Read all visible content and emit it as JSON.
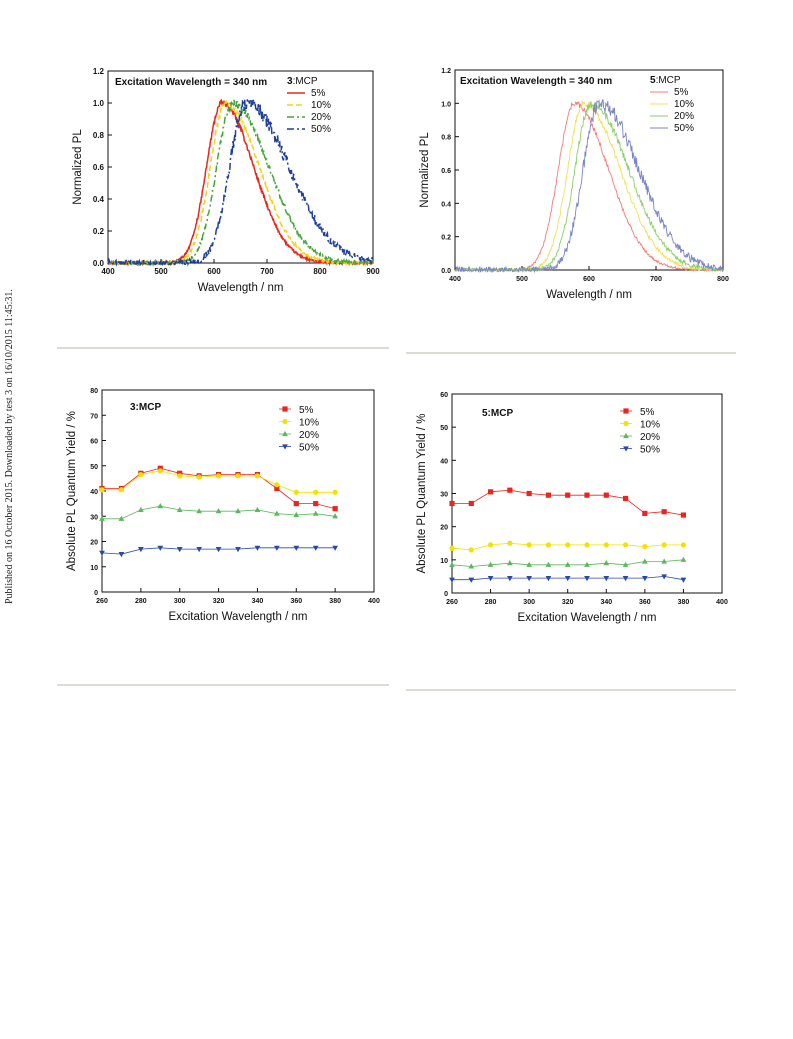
{
  "page": {
    "side_note": "Published on 16 October 2015. Downloaded by test 3 on 16/10/2015 11:45:31."
  },
  "chart_data": [
    {
      "type": "line",
      "annotation": "Excitation Wavelength = 340 nm",
      "legend_title_bold": "3",
      "legend_title": ":MCP",
      "legend_position": "top-right",
      "xlabel": "Wavelength / nm",
      "ylabel": "Normalized PL",
      "xlim": [
        400,
        900
      ],
      "ylim": [
        0.0,
        1.2
      ],
      "xticks": [
        400,
        500,
        600,
        700,
        800,
        900
      ],
      "yticks": [
        0.0,
        0.2,
        0.4,
        0.6,
        0.8,
        1.0,
        1.2
      ],
      "ytick_decimals": 1,
      "grid": false,
      "series": [
        {
          "name": "5%",
          "color": "#e8261f",
          "dash": "solid",
          "peak": 615,
          "width_left": 34,
          "width_right": 70
        },
        {
          "name": "10%",
          "color": "#f2d21b",
          "dash": "dashed",
          "peak": 622,
          "width_left": 34,
          "width_right": 74
        },
        {
          "name": "20%",
          "color": "#46a63c",
          "dash": "dashdot",
          "peak": 635,
          "width_left": 35,
          "width_right": 80
        },
        {
          "name": "50%",
          "color": "#1f3f99",
          "dash": "dashdot",
          "peak": 660,
          "width_left": 36,
          "width_right": 95
        }
      ]
    },
    {
      "type": "line",
      "annotation": "Excitation Wavelength = 340 nm",
      "legend_title_bold": "5",
      "legend_title": ":MCP",
      "legend_position": "top-right",
      "xlabel": "Wavelength / nm",
      "ylabel": "Normalized PL",
      "xlim": [
        400,
        800
      ],
      "ylim": [
        0.0,
        1.2
      ],
      "xticks": [
        400,
        500,
        600,
        700,
        800
      ],
      "yticks": [
        0.0,
        0.2,
        0.4,
        0.6,
        0.8,
        1.0,
        1.2
      ],
      "ytick_decimals": 1,
      "grid": false,
      "series": [
        {
          "name": "5%",
          "color": "#f07b7b",
          "dash": "solid",
          "peak": 578,
          "width_left": 28,
          "width_right": 60
        },
        {
          "name": "10%",
          "color": "#f0e05a",
          "dash": "solid",
          "peak": 592,
          "width_left": 28,
          "width_right": 64
        },
        {
          "name": "20%",
          "color": "#8ccf6a",
          "dash": "solid",
          "peak": 603,
          "width_left": 28,
          "width_right": 66
        },
        {
          "name": "50%",
          "color": "#7a86c8",
          "dash": "solid",
          "peak": 615,
          "width_left": 28,
          "width_right": 70
        }
      ]
    },
    {
      "type": "scatter",
      "title": "3:MCP",
      "legend_position": "top-right",
      "xlabel": "Excitation Wavelength / nm",
      "ylabel": "Absolute PL Quantum Yield / %",
      "xlim": [
        260,
        400
      ],
      "ylim": [
        0,
        80
      ],
      "xticks": [
        260,
        280,
        300,
        320,
        340,
        360,
        380,
        400
      ],
      "yticks": [
        0,
        10,
        20,
        30,
        40,
        50,
        60,
        70,
        80
      ],
      "ytick_decimals": 0,
      "grid": false,
      "x": [
        260,
        270,
        280,
        290,
        300,
        310,
        320,
        330,
        340,
        350,
        360,
        370,
        380
      ],
      "series": [
        {
          "name": "5%",
          "color": "#e8261f",
          "marker": "square",
          "values": [
            41,
            41,
            47,
            49,
            47,
            46,
            46.5,
            46.5,
            46.5,
            41,
            35,
            35,
            33
          ]
        },
        {
          "name": "10%",
          "color": "#f5e000",
          "marker": "circle",
          "values": [
            40.5,
            40.5,
            46.5,
            48,
            46,
            45.5,
            46,
            46,
            46,
            42.5,
            39.5,
            39.5,
            39.5
          ]
        },
        {
          "name": "20%",
          "color": "#5cb85c",
          "marker": "triangle-up",
          "values": [
            29,
            29,
            32.5,
            34,
            32.5,
            32,
            32,
            32,
            32.5,
            31,
            30.5,
            31,
            30
          ]
        },
        {
          "name": "50%",
          "color": "#2a4aa8",
          "marker": "triangle-down",
          "values": [
            15.5,
            15,
            17,
            17.5,
            17,
            17,
            17,
            17,
            17.5,
            17.5,
            17.5,
            17.5,
            17.5
          ]
        }
      ]
    },
    {
      "type": "scatter",
      "title": "5:MCP",
      "legend_position": "top-right",
      "xlabel": "Excitation Wavelength / nm",
      "ylabel": "Absolute PL Quantum Yield / %",
      "xlim": [
        260,
        400
      ],
      "ylim": [
        0,
        60
      ],
      "xticks": [
        260,
        280,
        300,
        320,
        340,
        360,
        380,
        400
      ],
      "yticks": [
        0,
        10,
        20,
        30,
        40,
        50,
        60
      ],
      "ytick_decimals": 0,
      "grid": false,
      "x": [
        260,
        270,
        280,
        290,
        300,
        310,
        320,
        330,
        340,
        350,
        360,
        370,
        380
      ],
      "series": [
        {
          "name": "5%",
          "color": "#e8261f",
          "marker": "square",
          "values": [
            27,
            27,
            30.5,
            31,
            30,
            29.5,
            29.5,
            29.5,
            29.5,
            28.5,
            24,
            24.5,
            23.5
          ]
        },
        {
          "name": "10%",
          "color": "#f5e000",
          "marker": "circle",
          "values": [
            13.5,
            13,
            14.5,
            15,
            14.5,
            14.5,
            14.5,
            14.5,
            14.5,
            14.5,
            14,
            14.5,
            14.5
          ]
        },
        {
          "name": "20%",
          "color": "#5cb85c",
          "marker": "triangle-up",
          "values": [
            8.5,
            8,
            8.5,
            9,
            8.5,
            8.5,
            8.5,
            8.5,
            9,
            8.5,
            9.5,
            9.5,
            10
          ]
        },
        {
          "name": "50%",
          "color": "#2a4aa8",
          "marker": "triangle-down",
          "values": [
            4,
            4,
            4.5,
            4.5,
            4.5,
            4.5,
            4.5,
            4.5,
            4.5,
            4.5,
            4.5,
            5,
            4
          ]
        }
      ]
    }
  ]
}
